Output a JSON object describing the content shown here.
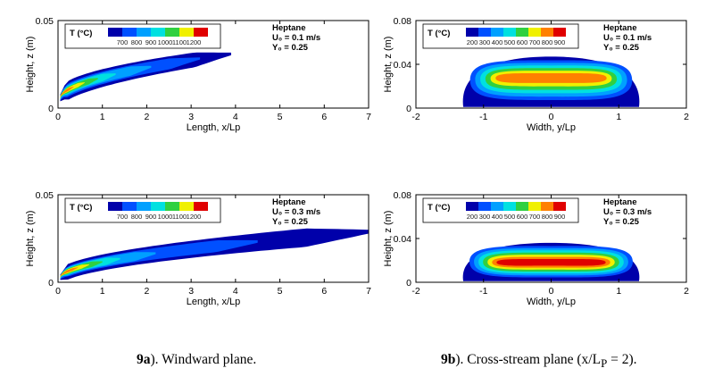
{
  "chart_data": [
    {
      "type": "contour",
      "id": "a1",
      "xlabel": "Length, x/Lp",
      "ylabel": "Height, z (m)",
      "xlim": [
        0,
        7
      ],
      "ylim": [
        0,
        0.05
      ],
      "xticks": [
        "0",
        "1",
        "2",
        "3",
        "4",
        "5",
        "6",
        "7"
      ],
      "yticks": [
        "0",
        "0.05"
      ],
      "legend": {
        "title": "T (°C)",
        "labels": [
          "700",
          "800",
          "900",
          "1000",
          "1100",
          "1200"
        ]
      },
      "info": {
        "fuel": "Heptane",
        "u0": "U₀ = 0.1 m/s",
        "y0": "Y₀ = 0.25"
      },
      "plume": {
        "outer": {
          "x0": 0.05,
          "x1": 3.9,
          "ytip": 0.006,
          "yend": 0.031,
          "thick0": 0.005,
          "thick1": 0.0035
        },
        "levels": [
          {
            "x1": 3.2,
            "frac": 0.7
          },
          {
            "x1": 2.1,
            "frac": 0.55
          },
          {
            "x1": 1.3,
            "frac": 0.42
          },
          {
            "x1": 0.9,
            "frac": 0.32
          },
          {
            "x1": 0.6,
            "frac": 0.22
          },
          {
            "x1": 0.35,
            "frac": 0.14
          }
        ]
      }
    },
    {
      "type": "contour",
      "id": "b1",
      "xlabel": "Width, y/Lp",
      "ylabel": "Height, z (m)",
      "xlim": [
        -2,
        2
      ],
      "ylim": [
        0,
        0.08
      ],
      "xticks": [
        "-2",
        "-1",
        "0",
        "1",
        "2"
      ],
      "yticks": [
        "0",
        "0.04",
        "0.08"
      ],
      "legend": {
        "title": "T (°C)",
        "labels": [
          "200",
          "300",
          "400",
          "500",
          "600",
          "700",
          "800",
          "900"
        ]
      },
      "info": {
        "fuel": "Heptane",
        "u0": "U₀ = 0.1 m/s",
        "y0": "Y₀ = 0.25"
      },
      "dome": {
        "halfwidth": 1.3,
        "height": 0.047,
        "core_z": 0.028,
        "levels": 7
      }
    },
    {
      "type": "contour",
      "id": "a2",
      "xlabel": "Length, x/Lp",
      "ylabel": "Height, z (m)",
      "xlim": [
        0,
        7
      ],
      "ylim": [
        0,
        0.05
      ],
      "xticks": [
        "0",
        "1",
        "2",
        "3",
        "4",
        "5",
        "6",
        "7"
      ],
      "yticks": [
        "0",
        "0.05"
      ],
      "legend": {
        "title": "T (°C)",
        "labels": [
          "700",
          "800",
          "900",
          "1000",
          "1100",
          "1200"
        ]
      },
      "info": {
        "fuel": "Heptane",
        "u0": "U₀ = 0.3 m/s",
        "y0": "Y₀ = 0.25"
      },
      "plume": {
        "outer": {
          "x0": 0.05,
          "x1": 7.0,
          "ytip": 0.003,
          "yend": 0.029,
          "thick0": 0.004,
          "thick1": 0.005
        },
        "levels": [
          {
            "x1": 4.5,
            "frac": 0.68
          },
          {
            "x1": 2.2,
            "frac": 0.55
          },
          {
            "x1": 1.4,
            "frac": 0.45
          },
          {
            "x1": 1.0,
            "frac": 0.35
          },
          {
            "x1": 0.7,
            "frac": 0.25
          },
          {
            "x1": 0.45,
            "frac": 0.15
          }
        ]
      }
    },
    {
      "type": "contour",
      "id": "b2",
      "xlabel": "Width, y/Lp",
      "ylabel": "Height, z (m)",
      "xlim": [
        -2,
        2
      ],
      "ylim": [
        0,
        0.08
      ],
      "xticks": [
        "-2",
        "-1",
        "0",
        "1",
        "2"
      ],
      "yticks": [
        "0",
        "0.04",
        "0.08"
      ],
      "legend": {
        "title": "T (°C)",
        "labels": [
          "200",
          "300",
          "400",
          "500",
          "600",
          "700",
          "800",
          "900"
        ]
      },
      "info": {
        "fuel": "Heptane",
        "u0": "U₀ = 0.3 m/s",
        "y0": "Y₀ = 0.25"
      },
      "dome": {
        "halfwidth": 1.3,
        "height": 0.036,
        "core_z": 0.018,
        "levels": 8
      }
    }
  ],
  "colormap": [
    "#0000aa",
    "#0050ff",
    "#00a0ff",
    "#00e0e0",
    "#30d040",
    "#f0f000",
    "#ff8000",
    "#e00000"
  ],
  "captions": {
    "a_num": "9a",
    "a_text": "). Windward plane.",
    "b_num": "9b",
    "b_text": "). Cross-stream plane (x/L",
    "b_sub": "P",
    "b_end": " = 2)."
  }
}
